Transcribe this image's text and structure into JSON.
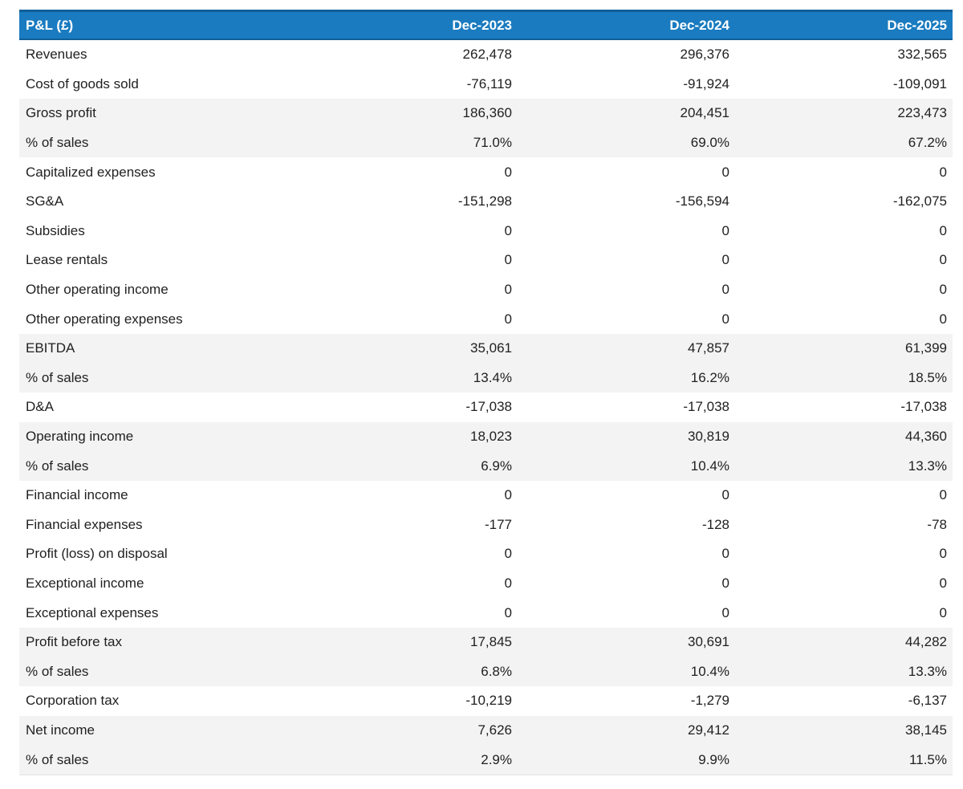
{
  "table": {
    "title": "P&L (£)",
    "columns": [
      "Dec-2023",
      "Dec-2024",
      "Dec-2025"
    ],
    "rows": [
      {
        "label": "Revenues",
        "values": [
          "262,478",
          "296,376",
          "332,565"
        ],
        "emphasis": false
      },
      {
        "label": "Cost of goods sold",
        "values": [
          "-76,119",
          "-91,924",
          "-109,091"
        ],
        "emphasis": false
      },
      {
        "label": "Gross profit",
        "values": [
          "186,360",
          "204,451",
          "223,473"
        ],
        "emphasis": true
      },
      {
        "label": "% of sales",
        "values": [
          "71.0%",
          "69.0%",
          "67.2%"
        ],
        "emphasis": true
      },
      {
        "label": "Capitalized expenses",
        "values": [
          "0",
          "0",
          "0"
        ],
        "emphasis": false
      },
      {
        "label": "SG&A",
        "values": [
          "-151,298",
          "-156,594",
          "-162,075"
        ],
        "emphasis": false
      },
      {
        "label": "Subsidies",
        "values": [
          "0",
          "0",
          "0"
        ],
        "emphasis": false
      },
      {
        "label": "Lease rentals",
        "values": [
          "0",
          "0",
          "0"
        ],
        "emphasis": false
      },
      {
        "label": "Other operating income",
        "values": [
          "0",
          "0",
          "0"
        ],
        "emphasis": false
      },
      {
        "label": "Other operating expenses",
        "values": [
          "0",
          "0",
          "0"
        ],
        "emphasis": false
      },
      {
        "label": "EBITDA",
        "values": [
          "35,061",
          "47,857",
          "61,399"
        ],
        "emphasis": true
      },
      {
        "label": "% of sales",
        "values": [
          "13.4%",
          "16.2%",
          "18.5%"
        ],
        "emphasis": true
      },
      {
        "label": "D&A",
        "values": [
          "-17,038",
          "-17,038",
          "-17,038"
        ],
        "emphasis": false
      },
      {
        "label": "Operating income",
        "values": [
          "18,023",
          "30,819",
          "44,360"
        ],
        "emphasis": true
      },
      {
        "label": "% of sales",
        "values": [
          "6.9%",
          "10.4%",
          "13.3%"
        ],
        "emphasis": true
      },
      {
        "label": "Financial income",
        "values": [
          "0",
          "0",
          "0"
        ],
        "emphasis": false
      },
      {
        "label": "Financial expenses",
        "values": [
          "-177",
          "-128",
          "-78"
        ],
        "emphasis": false
      },
      {
        "label": "Profit (loss) on disposal",
        "values": [
          "0",
          "0",
          "0"
        ],
        "emphasis": false
      },
      {
        "label": "Exceptional income",
        "values": [
          "0",
          "0",
          "0"
        ],
        "emphasis": false
      },
      {
        "label": "Exceptional expenses",
        "values": [
          "0",
          "0",
          "0"
        ],
        "emphasis": false
      },
      {
        "label": "Profit before tax",
        "values": [
          "17,845",
          "30,691",
          "44,282"
        ],
        "emphasis": true
      },
      {
        "label": "% of sales",
        "values": [
          "6.8%",
          "10.4%",
          "13.3%"
        ],
        "emphasis": true
      },
      {
        "label": "Corporation tax",
        "values": [
          "-10,219",
          "-1,279",
          "-6,137"
        ],
        "emphasis": false
      },
      {
        "label": "Net income",
        "values": [
          "7,626",
          "29,412",
          "38,145"
        ],
        "emphasis": true
      },
      {
        "label": "% of sales",
        "values": [
          "2.9%",
          "9.9%",
          "11.5%"
        ],
        "emphasis": true
      }
    ]
  },
  "colors": {
    "header_bg": "#1a7bc0",
    "header_border": "#0f5f99",
    "header_text": "#ffffff",
    "highlight_row_bg": "#f3f3f3",
    "body_text": "#212121"
  }
}
